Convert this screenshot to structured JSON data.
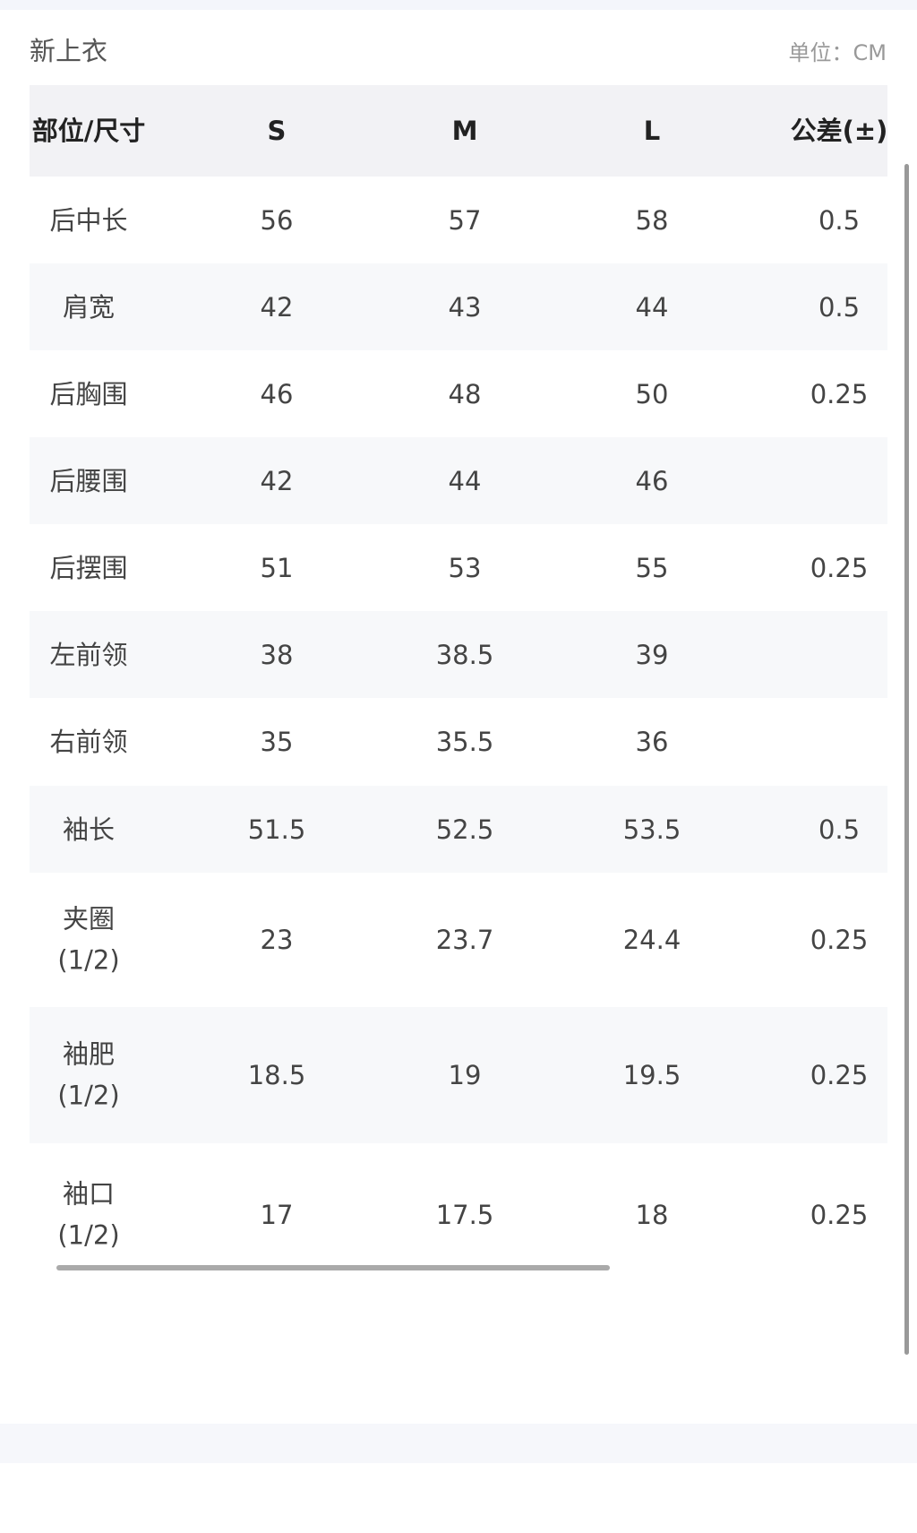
{
  "header": {
    "title": "新上衣",
    "unit": "单位：CM"
  },
  "table": {
    "columns": [
      "部位/尺寸",
      "S",
      "M",
      "L",
      "公差(±)"
    ],
    "rows": [
      [
        "后中长",
        "56",
        "57",
        "58",
        "0.5"
      ],
      [
        "肩宽",
        "42",
        "43",
        "44",
        "0.5"
      ],
      [
        "后胸围",
        "46",
        "48",
        "50",
        "0.25"
      ],
      [
        "后腰围",
        "42",
        "44",
        "46",
        null
      ],
      [
        "后摆围",
        "51",
        "53",
        "55",
        "0.25"
      ],
      [
        "左前领",
        "38",
        "38.5",
        "39",
        null
      ],
      [
        "右前领",
        "35",
        "35.5",
        "36",
        null
      ],
      [
        "袖长",
        "51.5",
        "52.5",
        "53.5",
        "0.5"
      ],
      [
        "夹圈\n(1/2)",
        "23",
        "23.7",
        "24.4",
        "0.25"
      ],
      [
        "袖肥\n(1/2)",
        "18.5",
        "19",
        "19.5",
        "0.25"
      ],
      [
        "袖口\n(1/2)",
        "17",
        "17.5",
        "18",
        "0.25"
      ]
    ]
  }
}
